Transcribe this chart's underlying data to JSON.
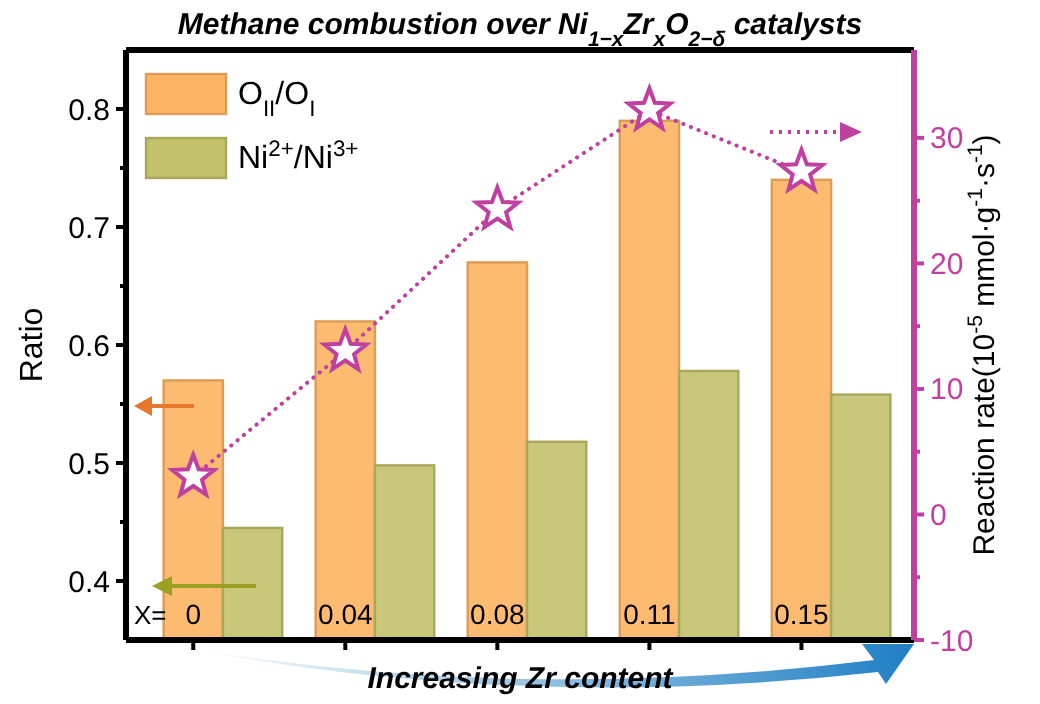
{
  "chart_data": {
    "type": "bar",
    "title": "Methane combustion over Ni$_{1−x}$Zr$_{x}$O$_{2−δ}$ catalysts",
    "xlabel": "Increasing Zr content",
    "ylabel": "Ratio",
    "y2label": "Reaction rate(10$^{-5}$ mmol·g$^{-1}$·s$^{-1}$)",
    "categories": [
      "0",
      "0.04",
      "0.08",
      "0.11",
      "0.15"
    ],
    "series": [
      {
        "name": "O$_{II}$/O$_{I}$",
        "color": "#fdb462",
        "values": [
          0.57,
          0.62,
          0.67,
          0.79,
          0.74
        ]
      },
      {
        "name": "Ni$^{2+}$/Ni$^{3+}$",
        "color": "#c3c16a",
        "values": [
          0.445,
          0.498,
          0.518,
          0.578,
          0.558
        ]
      },
      {
        "type": "line",
        "axis": "y2",
        "color": "#c040a0",
        "marker": "star",
        "line_style": "dotted",
        "values": [
          3,
          13,
          24.3,
          32.2,
          27.3
        ]
      }
    ],
    "ylim": [
      0.35,
      0.85
    ],
    "yticks": [
      0.4,
      0.5,
      0.6,
      0.7,
      0.8
    ],
    "y2lim": [
      -10,
      37
    ],
    "y2ticks": [
      -10,
      0,
      10,
      20,
      30
    ],
    "annotations": [
      "X="
    ],
    "legend": "top left",
    "grid": false
  }
}
